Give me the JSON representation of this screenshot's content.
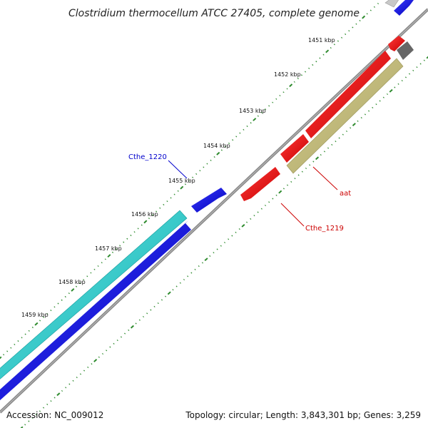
{
  "title": "Clostridium thermocellum ATCC 27405, complete genome",
  "footer": {
    "accession": "Accession: NC_009012",
    "topology": "Topology: circular; Length: 3,843,301 bp; Genes: 3,259"
  },
  "ruler": {
    "unit": "kbp",
    "labels": [
      "1451 kbp",
      "1452 kbp",
      "1453 kbp",
      "1454 kbp",
      "1455 kbp",
      "1456 kbp",
      "1457 kbp",
      "1458 kbp",
      "1459 kbp"
    ]
  },
  "colors": {
    "forward_cds": "#0000e6",
    "reverse_cds": "#e60000",
    "cyan_feature": "#1ec8c8",
    "khaki_feature": "#bdb76b",
    "gray_feature": "#666666",
    "backbone": "#777777",
    "tick": "#2e8b2e",
    "label_blue": "#0000cc",
    "label_red": "#cc0000"
  },
  "callouts": [
    {
      "id": "cthe1220",
      "text": "Cthe_1220",
      "color": "blue"
    },
    {
      "id": "aat",
      "text": "aat",
      "color": "red"
    },
    {
      "id": "cthe1219",
      "text": "Cthe_1219",
      "color": "red"
    }
  ]
}
